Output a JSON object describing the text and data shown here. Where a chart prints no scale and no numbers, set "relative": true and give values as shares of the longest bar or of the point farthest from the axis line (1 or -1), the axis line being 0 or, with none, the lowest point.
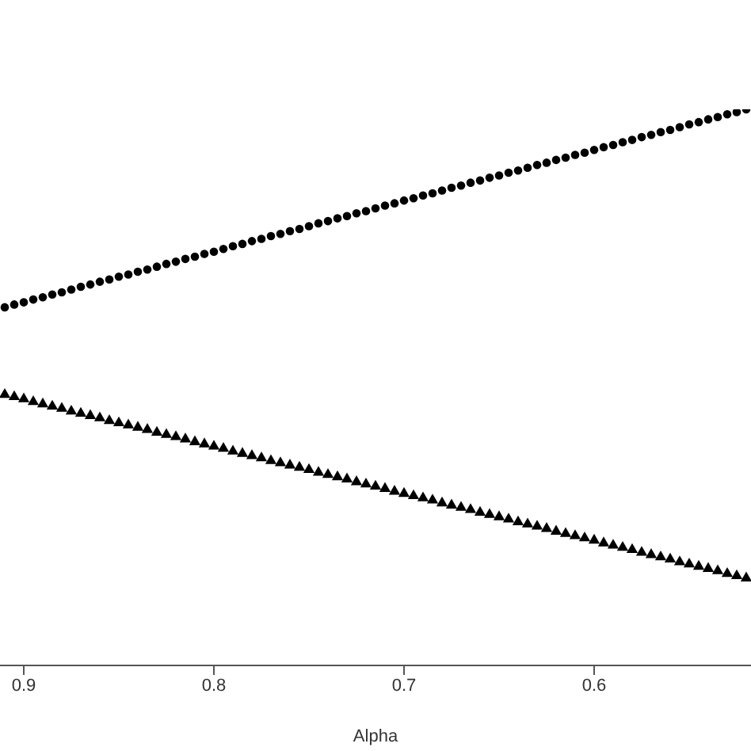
{
  "chart_data": {
    "type": "scatter",
    "xlabel": "Alpha",
    "relative": true,
    "xlim": [
      0.9125,
      0.5175
    ],
    "xticks": [
      0.9,
      0.8,
      0.7,
      0.6
    ],
    "grid": false,
    "legend": false,
    "x": [
      0.91,
      0.905,
      0.9,
      0.895,
      0.89,
      0.885,
      0.88,
      0.875,
      0.87,
      0.865,
      0.86,
      0.855,
      0.85,
      0.845,
      0.84,
      0.835,
      0.83,
      0.825,
      0.82,
      0.815,
      0.81,
      0.805,
      0.8,
      0.795,
      0.79,
      0.785,
      0.78,
      0.775,
      0.77,
      0.765,
      0.76,
      0.755,
      0.75,
      0.745,
      0.74,
      0.735,
      0.73,
      0.725,
      0.72,
      0.715,
      0.71,
      0.705,
      0.7,
      0.695,
      0.69,
      0.685,
      0.68,
      0.675,
      0.67,
      0.665,
      0.66,
      0.655,
      0.65,
      0.645,
      0.64,
      0.635,
      0.63,
      0.625,
      0.62,
      0.615,
      0.61,
      0.605,
      0.6,
      0.595,
      0.59,
      0.585,
      0.58,
      0.575,
      0.57,
      0.565,
      0.56,
      0.555,
      0.55,
      0.545,
      0.54,
      0.535,
      0.53,
      0.525,
      0.52
    ],
    "series": [
      {
        "color": "#000000",
        "marker": "circle",
        "values": [
          0.644,
          0.649,
          0.653,
          0.658,
          0.662,
          0.667,
          0.671,
          0.676,
          0.681,
          0.685,
          0.69,
          0.694,
          0.699,
          0.703,
          0.708,
          0.712,
          0.717,
          0.722,
          0.726,
          0.731,
          0.735,
          0.74,
          0.744,
          0.749,
          0.754,
          0.758,
          0.763,
          0.767,
          0.772,
          0.776,
          0.781,
          0.785,
          0.79,
          0.795,
          0.799,
          0.804,
          0.808,
          0.813,
          0.817,
          0.822,
          0.827,
          0.831,
          0.836,
          0.84,
          0.845,
          0.849,
          0.854,
          0.859,
          0.863,
          0.868,
          0.872,
          0.877,
          0.881,
          0.886,
          0.89,
          0.895,
          0.9,
          0.904,
          0.909,
          0.913,
          0.918,
          0.922,
          0.927,
          0.932,
          0.936,
          0.941,
          0.945,
          0.95,
          0.954,
          0.959,
          0.963,
          0.968,
          0.973,
          0.977,
          0.982,
          0.986,
          0.991,
          0.995,
          1
        ]
      },
      {
        "color": "#000000",
        "marker": "triangle",
        "values": [
          0.487,
          0.483,
          0.479,
          0.474,
          0.47,
          0.466,
          0.462,
          0.457,
          0.453,
          0.449,
          0.445,
          0.44,
          0.436,
          0.432,
          0.428,
          0.424,
          0.419,
          0.415,
          0.411,
          0.407,
          0.402,
          0.398,
          0.394,
          0.39,
          0.385,
          0.381,
          0.377,
          0.373,
          0.368,
          0.364,
          0.36,
          0.356,
          0.352,
          0.347,
          0.343,
          0.339,
          0.335,
          0.33,
          0.326,
          0.322,
          0.318,
          0.313,
          0.309,
          0.305,
          0.301,
          0.297,
          0.292,
          0.288,
          0.284,
          0.28,
          0.275,
          0.271,
          0.267,
          0.263,
          0.258,
          0.254,
          0.25,
          0.246,
          0.241,
          0.237,
          0.233,
          0.229,
          0.225,
          0.22,
          0.216,
          0.212,
          0.208,
          0.203,
          0.199,
          0.195,
          0.191,
          0.186,
          0.182,
          0.178,
          0.174,
          0.17,
          0.165,
          0.161,
          0.157
        ]
      }
    ]
  }
}
